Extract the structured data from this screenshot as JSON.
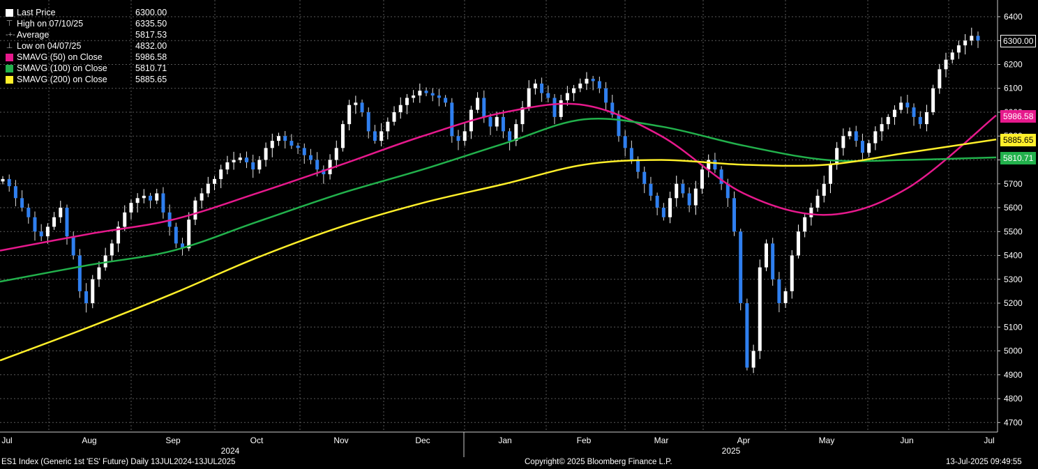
{
  "legend": {
    "last_price": {
      "label": "Last Price",
      "value": "6300.00",
      "icon": "square-icon",
      "color": "#ffffff"
    },
    "high": {
      "label": "High on 07/10/25",
      "value": "6335.50",
      "icon": "high-marker-icon"
    },
    "average": {
      "label": "Average",
      "value": "5817.53",
      "icon": "average-marker-icon"
    },
    "low": {
      "label": "Low on 04/07/25",
      "value": "4832.00",
      "icon": "low-marker-icon"
    },
    "sma50": {
      "label": "SMAVG (50)  on Close",
      "value": "5986.58",
      "color": "#e6198c"
    },
    "sma100": {
      "label": "SMAVG (100)  on Close",
      "value": "5810.71",
      "color": "#22b14c"
    },
    "sma200": {
      "label": "SMAVG (200)  on Close",
      "value": "5885.65",
      "color": "#ffef2a"
    }
  },
  "footer": {
    "left": "ES1 Index (Generic 1st 'ES' Future)  Daily 13JUL2024-13JUL2025",
    "center": "Copyright© 2025 Bloomberg Finance L.P.",
    "right": "13-Jul-2025 09:49:55"
  },
  "chart_data": {
    "type": "candlestick",
    "ylim": [
      4660,
      6470
    ],
    "yticks": [
      4700,
      4800,
      4900,
      5000,
      5100,
      5200,
      5300,
      5400,
      5500,
      5600,
      5700,
      5800,
      5900,
      6000,
      6100,
      6200,
      6300,
      6400
    ],
    "grid": true,
    "legend_position": "top-left",
    "x_month_labels": [
      "Jul",
      "Aug",
      "Sep",
      "Oct",
      "Nov",
      "Dec",
      "Jan",
      "Feb",
      "Mar",
      "Apr",
      "May",
      "Jun",
      "Jul"
    ],
    "x_year_labels": [
      "2024",
      "2025"
    ],
    "up_color": "#ffffff",
    "down_color": "#2f7fef",
    "close_trace": [
      [
        "Jul",
        5720
      ],
      [
        "Jul",
        5690
      ],
      [
        "Jul",
        5640
      ],
      [
        "Jul",
        5600
      ],
      [
        "Jul",
        5560
      ],
      [
        "Jul",
        5500
      ],
      [
        "Jul",
        5480
      ],
      [
        "Jul",
        5520
      ],
      [
        "Jul",
        5560
      ],
      [
        "Jul",
        5600
      ],
      [
        "Jul",
        5480
      ],
      [
        "Jul",
        5400
      ],
      [
        "Aug",
        5250
      ],
      [
        "Aug",
        5200
      ],
      [
        "Aug",
        5300
      ],
      [
        "Aug",
        5350
      ],
      [
        "Aug",
        5400
      ],
      [
        "Aug",
        5450
      ],
      [
        "Aug",
        5520
      ],
      [
        "Aug",
        5580
      ],
      [
        "Aug",
        5620
      ],
      [
        "Aug",
        5640
      ],
      [
        "Aug",
        5650
      ],
      [
        "Aug",
        5630
      ],
      [
        "Aug",
        5660
      ],
      [
        "Sep",
        5580
      ],
      [
        "Sep",
        5520
      ],
      [
        "Sep",
        5450
      ],
      [
        "Sep",
        5430
      ],
      [
        "Sep",
        5550
      ],
      [
        "Sep",
        5630
      ],
      [
        "Sep",
        5660
      ],
      [
        "Sep",
        5700
      ],
      [
        "Sep",
        5720
      ],
      [
        "Sep",
        5760
      ],
      [
        "Sep",
        5790
      ],
      [
        "Sep",
        5800
      ],
      [
        "Sep",
        5810
      ],
      [
        "Oct",
        5790
      ],
      [
        "Oct",
        5760
      ],
      [
        "Oct",
        5800
      ],
      [
        "Oct",
        5850
      ],
      [
        "Oct",
        5880
      ],
      [
        "Oct",
        5900
      ],
      [
        "Oct",
        5880
      ],
      [
        "Oct",
        5860
      ],
      [
        "Oct",
        5850
      ],
      [
        "Oct",
        5820
      ],
      [
        "Oct",
        5800
      ],
      [
        "Oct",
        5760
      ],
      [
        "Oct",
        5740
      ],
      [
        "Nov",
        5800
      ],
      [
        "Nov",
        5850
      ],
      [
        "Nov",
        5950
      ],
      [
        "Nov",
        6030
      ],
      [
        "Nov",
        6040
      ],
      [
        "Nov",
        6000
      ],
      [
        "Nov",
        5920
      ],
      [
        "Nov",
        5880
      ],
      [
        "Nov",
        5920
      ],
      [
        "Nov",
        5960
      ],
      [
        "Nov",
        6000
      ],
      [
        "Nov",
        6030
      ],
      [
        "Nov",
        6060
      ],
      [
        "Dec",
        6070
      ],
      [
        "Dec",
        6090
      ],
      [
        "Dec",
        6080
      ],
      [
        "Dec",
        6070
      ],
      [
        "Dec",
        6060
      ],
      [
        "Dec",
        6040
      ],
      [
        "Dec",
        5900
      ],
      [
        "Dec",
        5880
      ],
      [
        "Dec",
        5920
      ],
      [
        "Dec",
        6010
      ],
      [
        "Dec",
        6060
      ],
      [
        "Dec",
        5980
      ],
      [
        "Dec",
        5940
      ],
      [
        "Jan",
        5980
      ],
      [
        "Jan",
        5920
      ],
      [
        "Jan",
        5880
      ],
      [
        "Jan",
        5950
      ],
      [
        "Jan",
        6020
      ],
      [
        "Jan",
        6100
      ],
      [
        "Jan",
        6120
      ],
      [
        "Jan",
        6080
      ],
      [
        "Jan",
        6060
      ],
      [
        "Jan",
        5980
      ],
      [
        "Jan",
        6050
      ],
      [
        "Jan",
        6080
      ],
      [
        "Jan",
        6100
      ],
      [
        "Feb",
        6120
      ],
      [
        "Feb",
        6140
      ],
      [
        "Feb",
        6130
      ],
      [
        "Feb",
        6100
      ],
      [
        "Feb",
        6040
      ],
      [
        "Feb",
        5990
      ],
      [
        "Feb",
        5900
      ],
      [
        "Feb",
        5850
      ],
      [
        "Feb",
        5800
      ],
      [
        "Feb",
        5750
      ],
      [
        "Feb",
        5700
      ],
      [
        "Feb",
        5650
      ],
      [
        "Mar",
        5600
      ],
      [
        "Mar",
        5560
      ],
      [
        "Mar",
        5640
      ],
      [
        "Mar",
        5700
      ],
      [
        "Mar",
        5660
      ],
      [
        "Mar",
        5610
      ],
      [
        "Mar",
        5680
      ],
      [
        "Mar",
        5760
      ],
      [
        "Mar",
        5800
      ],
      [
        "Mar",
        5760
      ],
      [
        "Mar",
        5700
      ],
      [
        "Mar",
        5640
      ],
      [
        "Apr",
        5500
      ],
      [
        "Apr",
        5200
      ],
      [
        "Apr",
        4930
      ],
      [
        "Apr",
        5000
      ],
      [
        "Apr",
        5350
      ],
      [
        "Apr",
        5450
      ],
      [
        "Apr",
        5300
      ],
      [
        "Apr",
        5200
      ],
      [
        "Apr",
        5250
      ],
      [
        "Apr",
        5400
      ],
      [
        "Apr",
        5500
      ],
      [
        "Apr",
        5560
      ],
      [
        "May",
        5600
      ],
      [
        "May",
        5650
      ],
      [
        "May",
        5700
      ],
      [
        "May",
        5780
      ],
      [
        "May",
        5850
      ],
      [
        "May",
        5900
      ],
      [
        "May",
        5920
      ],
      [
        "May",
        5880
      ],
      [
        "May",
        5830
      ],
      [
        "May",
        5870
      ],
      [
        "May",
        5920
      ],
      [
        "May",
        5950
      ],
      [
        "Jun",
        5980
      ],
      [
        "Jun",
        6010
      ],
      [
        "Jun",
        6040
      ],
      [
        "Jun",
        6020
      ],
      [
        "Jun",
        5980
      ],
      [
        "Jun",
        5950
      ],
      [
        "Jun",
        6000
      ],
      [
        "Jun",
        6100
      ],
      [
        "Jun",
        6180
      ],
      [
        "Jun",
        6220
      ],
      [
        "Jun",
        6250
      ],
      [
        "Jun",
        6280
      ],
      [
        "Jul",
        6300
      ],
      [
        "Jul",
        6320
      ],
      [
        "Jul",
        6300
      ]
    ],
    "series": [
      {
        "name": "SMAVG (50)  on Close",
        "color": "#e6198c",
        "points": [
          [
            "Jul",
            5420
          ],
          [
            "Aug",
            5490
          ],
          [
            "Sep",
            5550
          ],
          [
            "Oct",
            5660
          ],
          [
            "Nov",
            5780
          ],
          [
            "Dec",
            5900
          ],
          [
            "Jan",
            6000
          ],
          [
            "Feb",
            6030
          ],
          [
            "Mar",
            5900
          ],
          [
            "Apr",
            5660
          ],
          [
            "May",
            5570
          ],
          [
            "Jun",
            5680
          ],
          [
            "Jul",
            5986.58
          ]
        ]
      },
      {
        "name": "SMAVG (100)  on Close",
        "color": "#22b14c",
        "points": [
          [
            "Jul",
            5290
          ],
          [
            "Aug",
            5360
          ],
          [
            "Sep",
            5420
          ],
          [
            "Oct",
            5540
          ],
          [
            "Nov",
            5660
          ],
          [
            "Dec",
            5760
          ],
          [
            "Jan",
            5870
          ],
          [
            "Feb",
            5970
          ],
          [
            "Mar",
            5940
          ],
          [
            "Apr",
            5860
          ],
          [
            "May",
            5800
          ],
          [
            "Jun",
            5800
          ],
          [
            "Jul",
            5810.71
          ]
        ]
      },
      {
        "name": "SMAVG (200)  on Close",
        "color": "#ffef2a",
        "points": [
          [
            "Jul",
            4960
          ],
          [
            "Aug",
            5100
          ],
          [
            "Sep",
            5240
          ],
          [
            "Oct",
            5390
          ],
          [
            "Nov",
            5520
          ],
          [
            "Dec",
            5620
          ],
          [
            "Jan",
            5700
          ],
          [
            "Feb",
            5780
          ],
          [
            "Mar",
            5800
          ],
          [
            "Apr",
            5780
          ],
          [
            "May",
            5780
          ],
          [
            "Jun",
            5830
          ],
          [
            "Jul",
            5885.65
          ]
        ]
      }
    ],
    "last_value_tags": [
      {
        "text": "6300.00",
        "value": 6300.0,
        "bg": "#000000",
        "fg": "#ffffff",
        "border": "#ffffff"
      },
      {
        "text": "5986.58",
        "value": 5986.58,
        "bg": "#e6198c",
        "fg": "#ffffff",
        "border": "#e6198c"
      },
      {
        "text": "5885.65",
        "value": 5885.65,
        "bg": "#ffef2a",
        "fg": "#000000",
        "border": "#ffef2a"
      },
      {
        "text": "5810.71",
        "value": 5810.71,
        "bg": "#22b14c",
        "fg": "#ffffff",
        "border": "#22b14c"
      }
    ]
  }
}
